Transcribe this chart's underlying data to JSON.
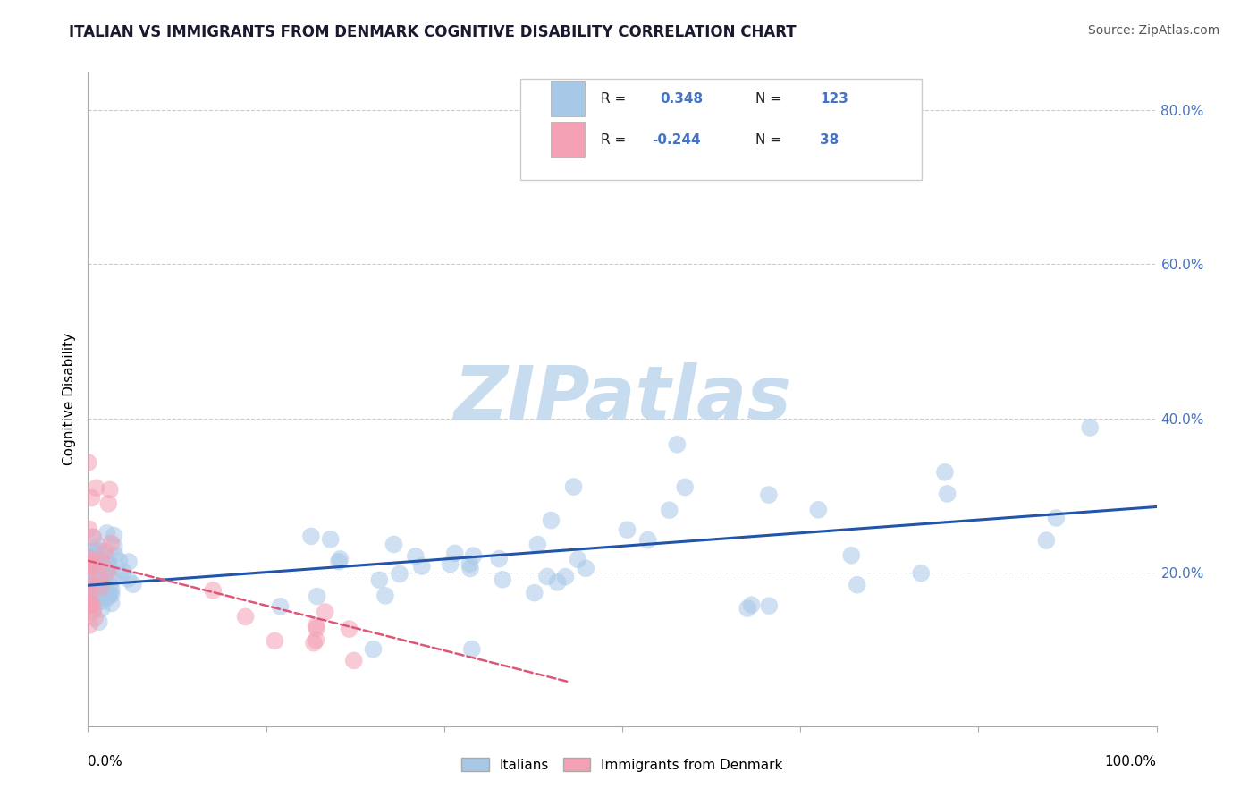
{
  "title": "ITALIAN VS IMMIGRANTS FROM DENMARK COGNITIVE DISABILITY CORRELATION CHART",
  "source": "Source: ZipAtlas.com",
  "ylabel": "Cognitive Disability",
  "xlim": [
    0.0,
    1.0
  ],
  "ylim": [
    0.0,
    0.85
  ],
  "blue_R": 0.348,
  "blue_N": 123,
  "pink_R": -0.244,
  "pink_N": 38,
  "blue_color": "#A8C8E8",
  "pink_color": "#F4A0B5",
  "blue_line_color": "#2255AA",
  "pink_line_color": "#DD5577",
  "watermark": "ZIPatlas",
  "legend_label_blue": "Italians",
  "legend_label_pink": "Immigrants from Denmark",
  "ytick_vals": [
    0.2,
    0.4,
    0.6,
    0.8
  ],
  "ytick_labels": [
    "20.0%",
    "40.0%",
    "60.0%",
    "80.0%"
  ],
  "xtick_label_left": "0.0%",
  "xtick_label_right": "100.0%",
  "blue_trend_x0": 0.0,
  "blue_trend_y0": 0.183,
  "blue_trend_x1": 1.0,
  "blue_trend_y1": 0.285,
  "pink_trend_x0": 0.0,
  "pink_trend_y0": 0.215,
  "pink_trend_x1": 0.22,
  "pink_trend_y1": 0.12
}
